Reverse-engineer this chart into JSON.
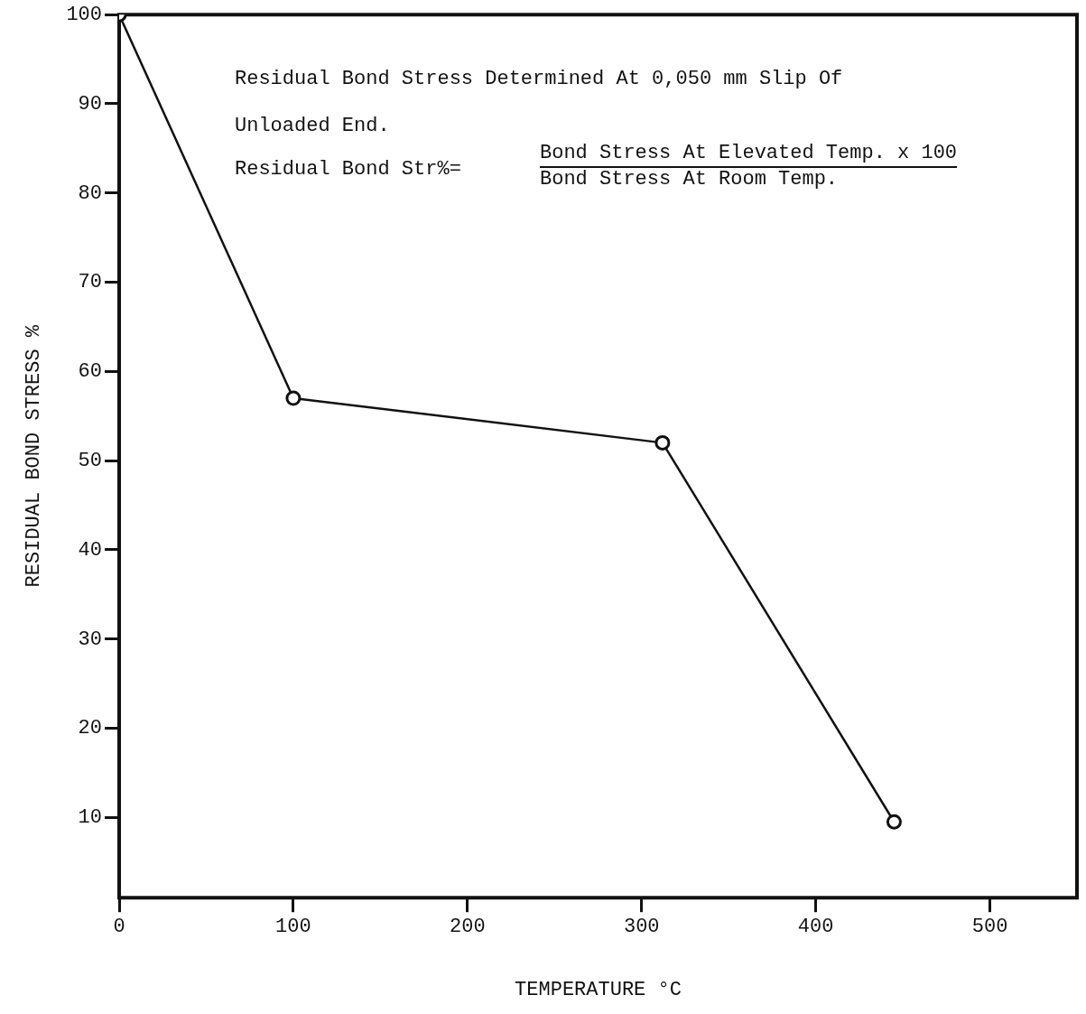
{
  "chart_data": {
    "type": "line",
    "xlabel": "TEMPERATURE °C",
    "ylabel": "RESIDUAL BOND STRESS %",
    "x": [
      0,
      100,
      312,
      445
    ],
    "series": [
      {
        "color": "#111111",
        "values": [
          100,
          57,
          52,
          9.5
        ]
      }
    ],
    "xlim": [
      0,
      550
    ],
    "ylim": [
      1,
      100
    ],
    "xticks": [
      0,
      100,
      200,
      300,
      400,
      500
    ],
    "yticks": [
      10,
      20,
      30,
      40,
      50,
      60,
      70,
      80,
      90,
      100
    ],
    "grid": false,
    "legend": false,
    "marker": "circle",
    "line_style": "solid",
    "annotations": [
      "Residual Bond Stress Determined At 0,050 mm Slip Of",
      "Unloaded End.",
      "Residual Bond Str%=",
      "Bond Stress At Elevated Temp. x 100",
      "Bond Stress At Room Temp."
    ]
  }
}
